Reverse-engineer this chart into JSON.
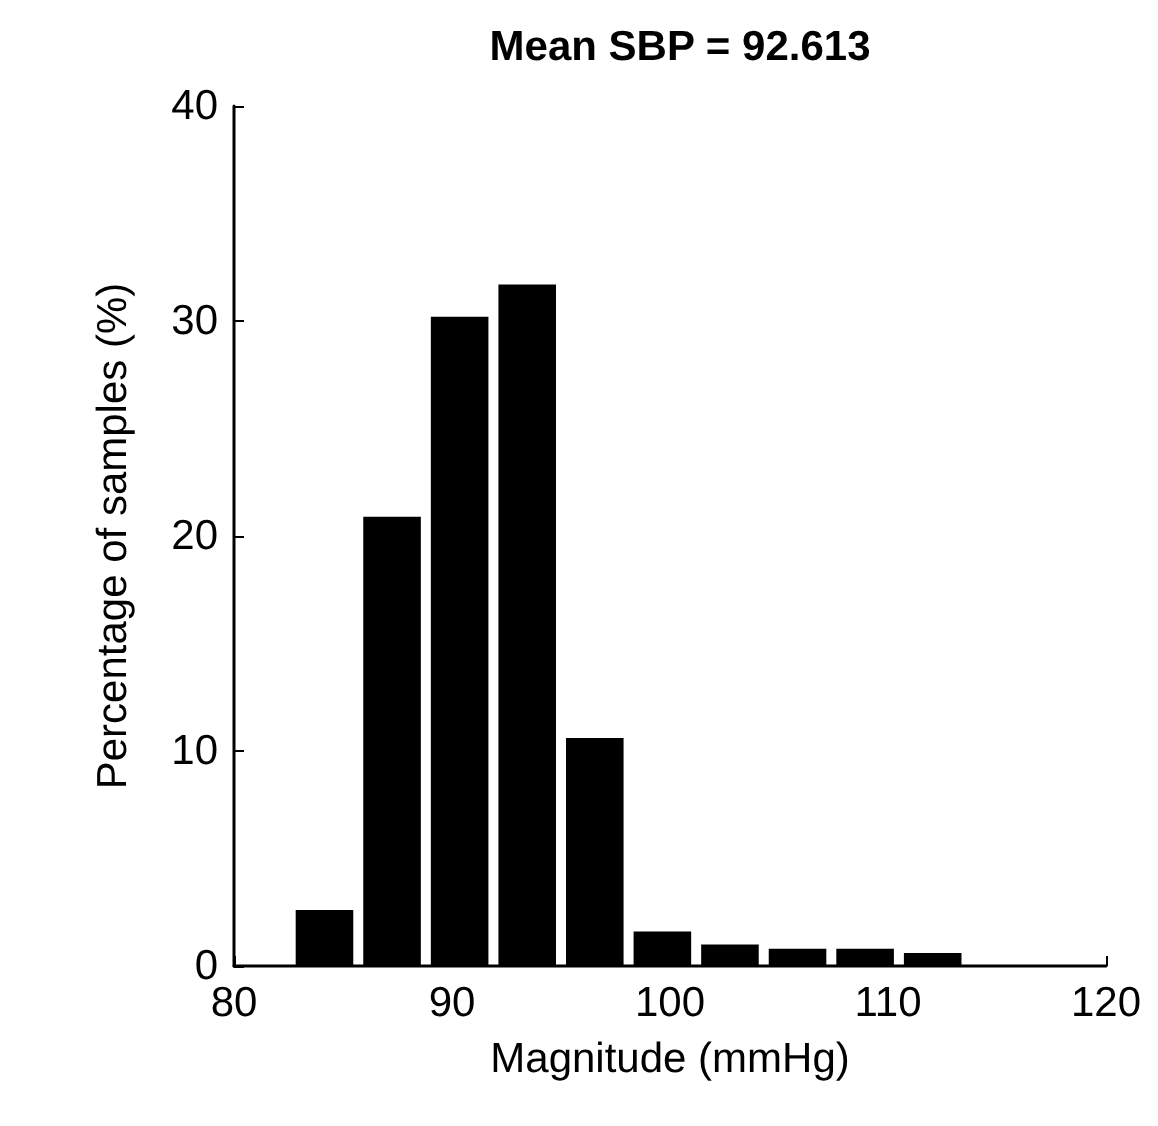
{
  "chart_data": {
    "type": "histogram",
    "title": "Mean SBP = 92.613",
    "xlabel": "Magnitude (mmHg)",
    "ylabel": "Percentage of samples (%)",
    "bins": [
      82.6,
      85.7,
      88.8,
      91.9,
      95.0,
      98.1,
      101.2,
      104.3,
      107.4,
      110.5,
      113.6
    ],
    "values": [
      2.6,
      20.9,
      30.2,
      31.7,
      10.6,
      1.6,
      1.0,
      0.8,
      0.8,
      0.6
    ],
    "color": "#000000",
    "xlim": [
      80,
      120
    ],
    "xticks": [
      80,
      90,
      100,
      110,
      120
    ],
    "ylim": [
      0,
      40
    ],
    "yticks": [
      0,
      10,
      20,
      30,
      40
    ],
    "grid": false,
    "legend": false
  }
}
